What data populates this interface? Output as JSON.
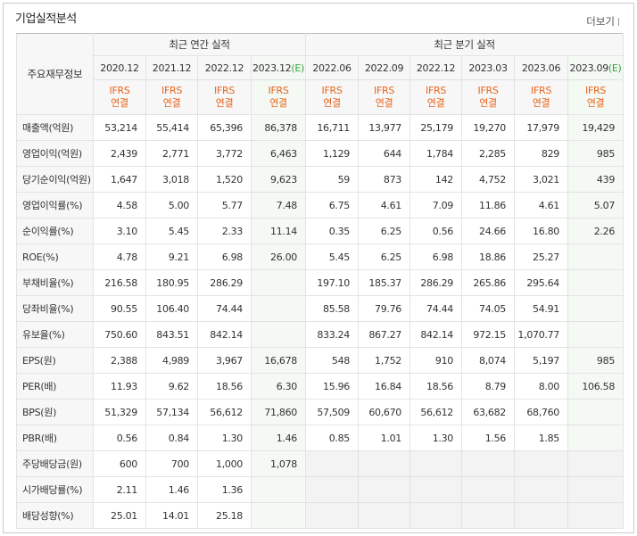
{
  "title": "기업실적분석",
  "more": "더보기",
  "header": {
    "row_label": "주요재무정보"
  },
  "groups": [
    {
      "label": "최근 연간 실적",
      "columns": [
        {
          "period": "2020.12",
          "gaap": "IFRS",
          "consol": "연결"
        },
        {
          "period": "2021.12",
          "gaap": "IFRS",
          "consol": "연결"
        },
        {
          "period": "2022.12",
          "gaap": "IFRS",
          "consol": "연결"
        },
        {
          "period": "2023.12",
          "est": "(E)",
          "gaap": "IFRS",
          "consol": "연결"
        }
      ]
    },
    {
      "label": "최근 분기 실적",
      "columns": [
        {
          "period": "2022.06",
          "gaap": "IFRS",
          "consol": "연결"
        },
        {
          "period": "2022.09",
          "gaap": "IFRS",
          "consol": "연결"
        },
        {
          "period": "2022.12",
          "gaap": "IFRS",
          "consol": "연결"
        },
        {
          "period": "2023.03",
          "gaap": "IFRS",
          "consol": "연결"
        },
        {
          "period": "2023.06",
          "gaap": "IFRS",
          "consol": "연결"
        },
        {
          "period": "2023.09",
          "est": "(E)",
          "gaap": "IFRS",
          "consol": "연결"
        }
      ]
    }
  ],
  "rows": [
    {
      "label": "매출액(억원)",
      "values": [
        "53,214",
        "55,414",
        "65,396",
        "86,378",
        "16,711",
        "13,977",
        "25,179",
        "19,270",
        "17,979",
        "19,429"
      ]
    },
    {
      "label": "영업이익(억원)",
      "values": [
        "2,439",
        "2,771",
        "3,772",
        "6,463",
        "1,129",
        "644",
        "1,784",
        "2,285",
        "829",
        "985"
      ]
    },
    {
      "label": "당기순이익(억원)",
      "values": [
        "1,647",
        "3,018",
        "1,520",
        "9,623",
        "59",
        "873",
        "142",
        "4,752",
        "3,021",
        "439"
      ]
    },
    {
      "label": "영업이익률(%)",
      "values": [
        "4.58",
        "5.00",
        "5.77",
        "7.48",
        "6.75",
        "4.61",
        "7.09",
        "11.86",
        "4.61",
        "5.07"
      ]
    },
    {
      "label": "순이익률(%)",
      "values": [
        "3.10",
        "5.45",
        "2.33",
        "11.14",
        "0.35",
        "6.25",
        "0.56",
        "24.66",
        "16.80",
        "2.26"
      ]
    },
    {
      "label": "ROE(%)",
      "values": [
        "4.78",
        "9.21",
        "6.98",
        "26.00",
        "5.45",
        "6.25",
        "6.98",
        "18.86",
        "25.27",
        null
      ]
    },
    {
      "label": "부채비율(%)",
      "values": [
        "216.58",
        "180.95",
        "286.29",
        null,
        "197.10",
        "185.37",
        "286.29",
        "265.86",
        "295.64",
        null
      ]
    },
    {
      "label": "당좌비율(%)",
      "values": [
        "90.55",
        "106.40",
        "74.44",
        null,
        "85.58",
        "79.76",
        "74.44",
        "74.05",
        "54.91",
        null
      ]
    },
    {
      "label": "유보율(%)",
      "values": [
        "750.60",
        "843.51",
        "842.14",
        null,
        "833.24",
        "867.27",
        "842.14",
        "972.15",
        "1,070.77",
        null
      ]
    },
    {
      "label": "EPS(원)",
      "values": [
        "2,388",
        "4,989",
        "3,967",
        "16,678",
        "548",
        "1,752",
        "910",
        "8,074",
        "5,197",
        "985"
      ]
    },
    {
      "label": "PER(배)",
      "values": [
        "11.93",
        "9.62",
        "18.56",
        "6.30",
        "15.96",
        "16.84",
        "18.56",
        "8.79",
        "8.00",
        "106.58"
      ]
    },
    {
      "label": "BPS(원)",
      "values": [
        "51,329",
        "57,134",
        "56,612",
        "71,860",
        "57,509",
        "60,670",
        "56,612",
        "63,682",
        "68,760",
        null
      ]
    },
    {
      "label": "PBR(배)",
      "values": [
        "0.56",
        "0.84",
        "1.30",
        "1.46",
        "0.85",
        "1.01",
        "1.30",
        "1.56",
        "1.85",
        null
      ]
    },
    {
      "label": "주당배당금(원)",
      "values": [
        "600",
        "700",
        "1,000",
        "1,078",
        null,
        null,
        null,
        null,
        null,
        null
      ]
    },
    {
      "label": "시가배당률(%)",
      "values": [
        "2.11",
        "1.46",
        "1.36",
        null,
        null,
        null,
        null,
        null,
        null,
        null
      ]
    },
    {
      "label": "배당성향(%)",
      "values": [
        "25.01",
        "14.01",
        "25.18",
        null,
        null,
        null,
        null,
        null,
        null,
        null
      ]
    }
  ]
}
